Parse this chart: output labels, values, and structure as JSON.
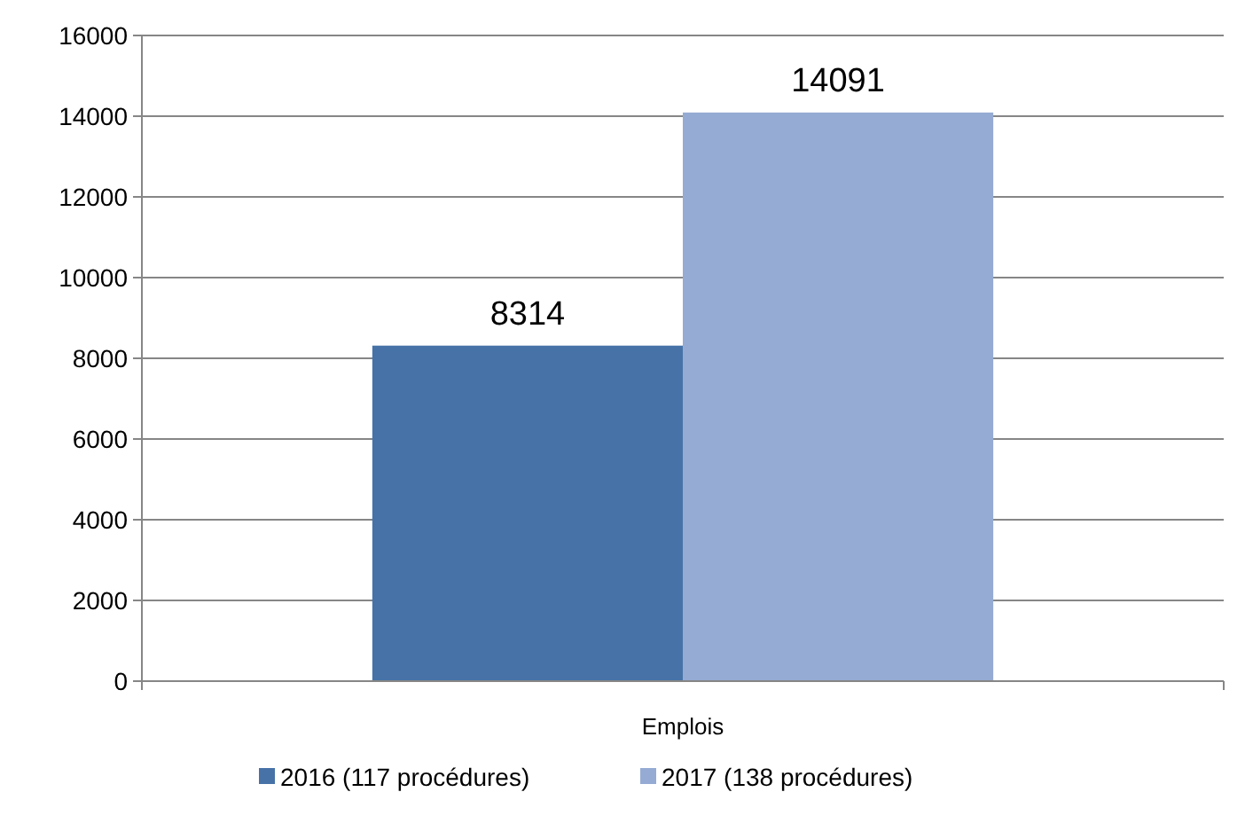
{
  "chart_data": {
    "type": "bar",
    "categories": [
      "Emplois"
    ],
    "series": [
      {
        "name": "2016 (117 procédures)",
        "color": "#4672a8",
        "values": [
          8314
        ]
      },
      {
        "name": "2017 (138 procédures)",
        "color": "#95abd3",
        "values": [
          14091
        ]
      }
    ],
    "ylim": [
      0,
      16000
    ],
    "yticks": [
      0,
      2000,
      4000,
      6000,
      8000,
      10000,
      12000,
      14000,
      16000
    ],
    "grid": "y",
    "legend": "bottom",
    "data_labels": true
  }
}
